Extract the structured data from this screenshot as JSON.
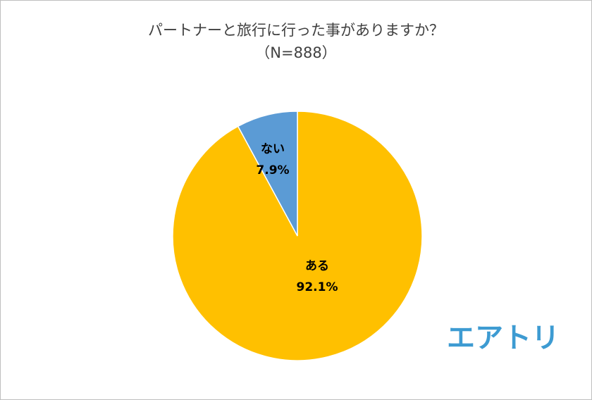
{
  "chart_data": {
    "type": "pie",
    "title": "パートナーと旅行に行った事がありますか？",
    "subtitle": "（N=888）",
    "categories": [
      "ある",
      "ない"
    ],
    "values": [
      92.1,
      7.9
    ],
    "value_labels": [
      "92.1%",
      "7.9%"
    ],
    "colors": [
      "#FFC000",
      "#5B9BD5"
    ],
    "logo": "エアトリ"
  }
}
